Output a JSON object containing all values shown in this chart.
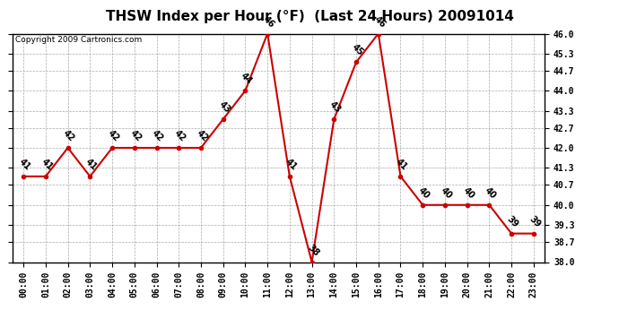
{
  "title": "THSW Index per Hour (°F)  (Last 24 Hours) 20091014",
  "copyright": "Copyright 2009 Cartronics.com",
  "hours": [
    "00:00",
    "01:00",
    "02:00",
    "03:00",
    "04:00",
    "05:00",
    "06:00",
    "07:00",
    "08:00",
    "09:00",
    "10:00",
    "11:00",
    "12:00",
    "13:00",
    "14:00",
    "15:00",
    "16:00",
    "17:00",
    "18:00",
    "19:00",
    "20:00",
    "21:00",
    "22:00",
    "23:00"
  ],
  "values": [
    41,
    41,
    42,
    41,
    42,
    42,
    42,
    42,
    42,
    43,
    44,
    46,
    41,
    38,
    43,
    45,
    46,
    41,
    40,
    40,
    40,
    40,
    39,
    39
  ],
  "ylim_min": 38.0,
  "ylim_max": 46.0,
  "yticks": [
    38.0,
    38.7,
    39.3,
    40.0,
    40.7,
    41.3,
    42.0,
    42.7,
    43.3,
    44.0,
    44.7,
    45.3,
    46.0
  ],
  "line_color": "#cc0000",
  "marker_color": "#cc0000",
  "bg_color": "#ffffff",
  "grid_color": "#aaaaaa",
  "title_fontsize": 11,
  "label_fontsize": 7,
  "annot_fontsize": 7,
  "copyright_fontsize": 6.5
}
